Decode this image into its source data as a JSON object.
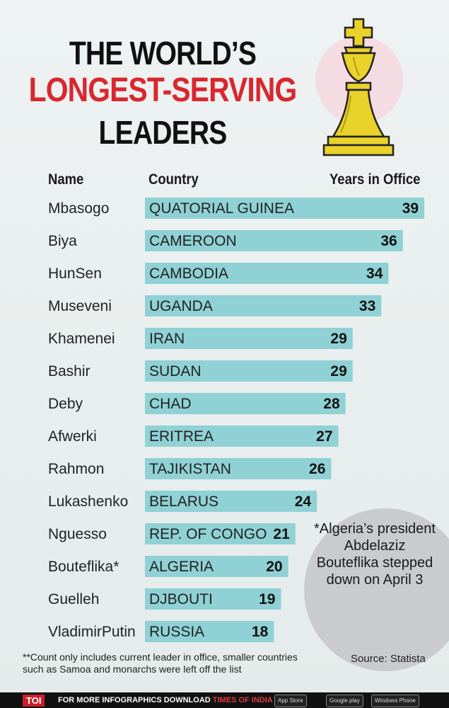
{
  "title": {
    "line1": "THE WORLD’S",
    "line2": "LONGEST-SERVING",
    "line3": "LEADERS"
  },
  "headers": {
    "name": "Name",
    "country": "Country",
    "years": "Years in Office"
  },
  "chart_data": {
    "type": "bar",
    "orientation": "horizontal",
    "title": "THE WORLD’S LONGEST-SERVING LEADERS",
    "xlabel": "Years in Office",
    "ylabel": "",
    "xlim": [
      0,
      40
    ],
    "grid": false,
    "categories": [
      "Mbasogo",
      "Biya",
      "HunSen",
      "Museveni",
      "Khamenei",
      "Bashir",
      "Deby",
      "Afwerki",
      "Rahmon",
      "Lukashenko",
      "Nguesso",
      "Bouteflika*",
      "Guelleh",
      "VladimirPutin"
    ],
    "countries": [
      "QUATORIAL GUINEA",
      "CAMEROON",
      "CAMBODIA",
      "UGANDA",
      "IRAN",
      "SUDAN",
      "CHAD",
      "ERITREA",
      "TAJIKISTAN",
      "BELARUS",
      "REP. OF CONGO",
      "ALGERIA",
      "DJBOUTI",
      "RUSSIA"
    ],
    "values": [
      39,
      36,
      34,
      33,
      29,
      29,
      28,
      27,
      26,
      24,
      21,
      20,
      19,
      18
    ],
    "bar_color": "#8fd1d5"
  },
  "note": "*Algeria’s president Abdelaziz Bouteflika stepped down on April 3",
  "footnote": "**Count only includes current leader in office, smaller countries such as Samoa and monarchs were left off the list",
  "source": "Source: Statista",
  "footer": {
    "logo": "TOI",
    "text": "FOR MORE INFOGRAPHICS DOWNLOAD",
    "app": "TIMES OF INDIA APP",
    "badges": [
      "App Store",
      "Google play",
      "Windows Phone"
    ]
  },
  "colors": {
    "accent_red": "#d9272e",
    "bar": "#8fd1d5"
  }
}
